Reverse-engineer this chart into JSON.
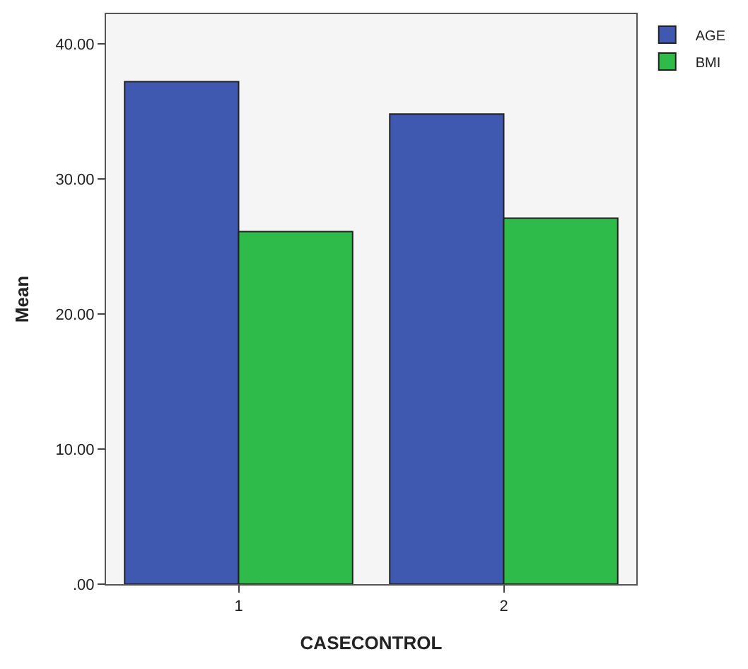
{
  "chart_data": {
    "type": "bar",
    "xlabel": "CASECONTROL",
    "ylabel": "Mean",
    "categories": [
      "1",
      "2"
    ],
    "series": [
      {
        "name": "AGE",
        "color": "#3f58b0",
        "values": [
          37.2,
          34.8
        ]
      },
      {
        "name": "BMI",
        "color": "#2fbb4a",
        "values": [
          26.1,
          27.1
        ]
      }
    ],
    "ylim": [
      0,
      42.2
    ],
    "yticks": [
      {
        "value": 0,
        "label": ".00"
      },
      {
        "value": 10,
        "label": "10.00"
      },
      {
        "value": 20,
        "label": "20.00"
      },
      {
        "value": 30,
        "label": "30.00"
      },
      {
        "value": 40,
        "label": "40.00"
      }
    ],
    "grid": false,
    "legend": "top right"
  }
}
